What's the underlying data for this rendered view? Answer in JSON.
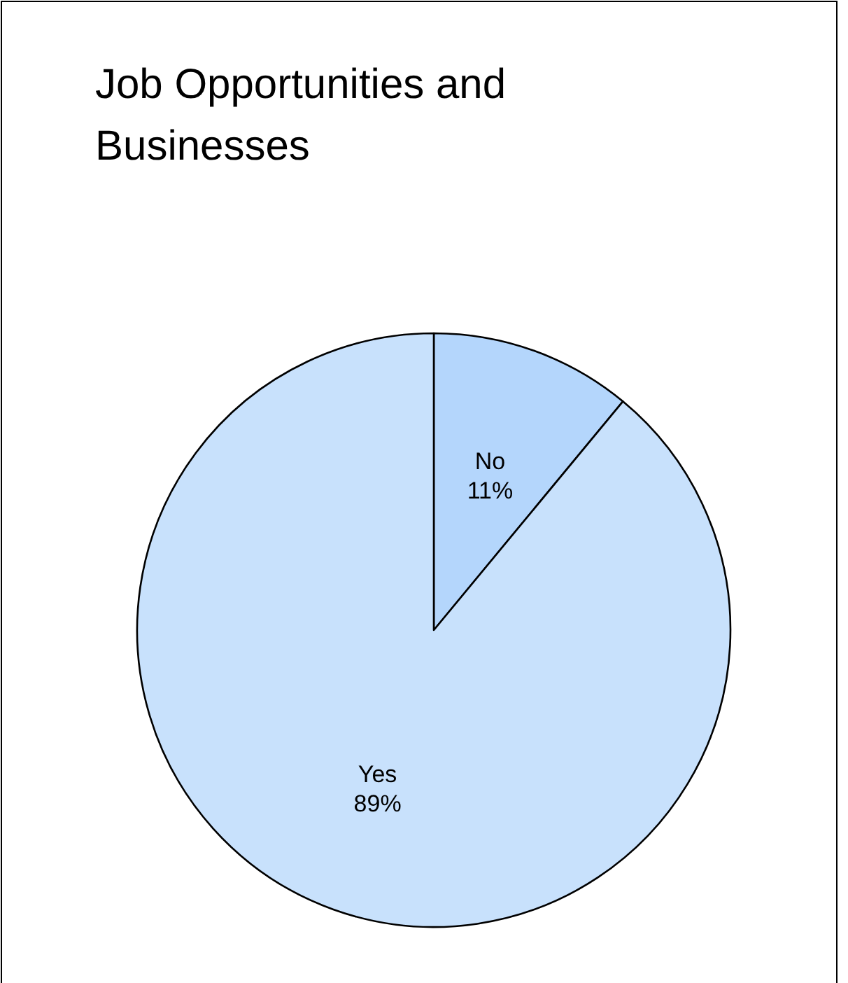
{
  "chart_data": {
    "type": "pie",
    "title": "Job Opportunities and Businesses",
    "categories": [
      "No",
      "Yes"
    ],
    "values": [
      11,
      89
    ],
    "colors": [
      "#b4d6fc",
      "#c8e1fc"
    ],
    "value_labels": [
      "11%",
      "89%"
    ]
  }
}
